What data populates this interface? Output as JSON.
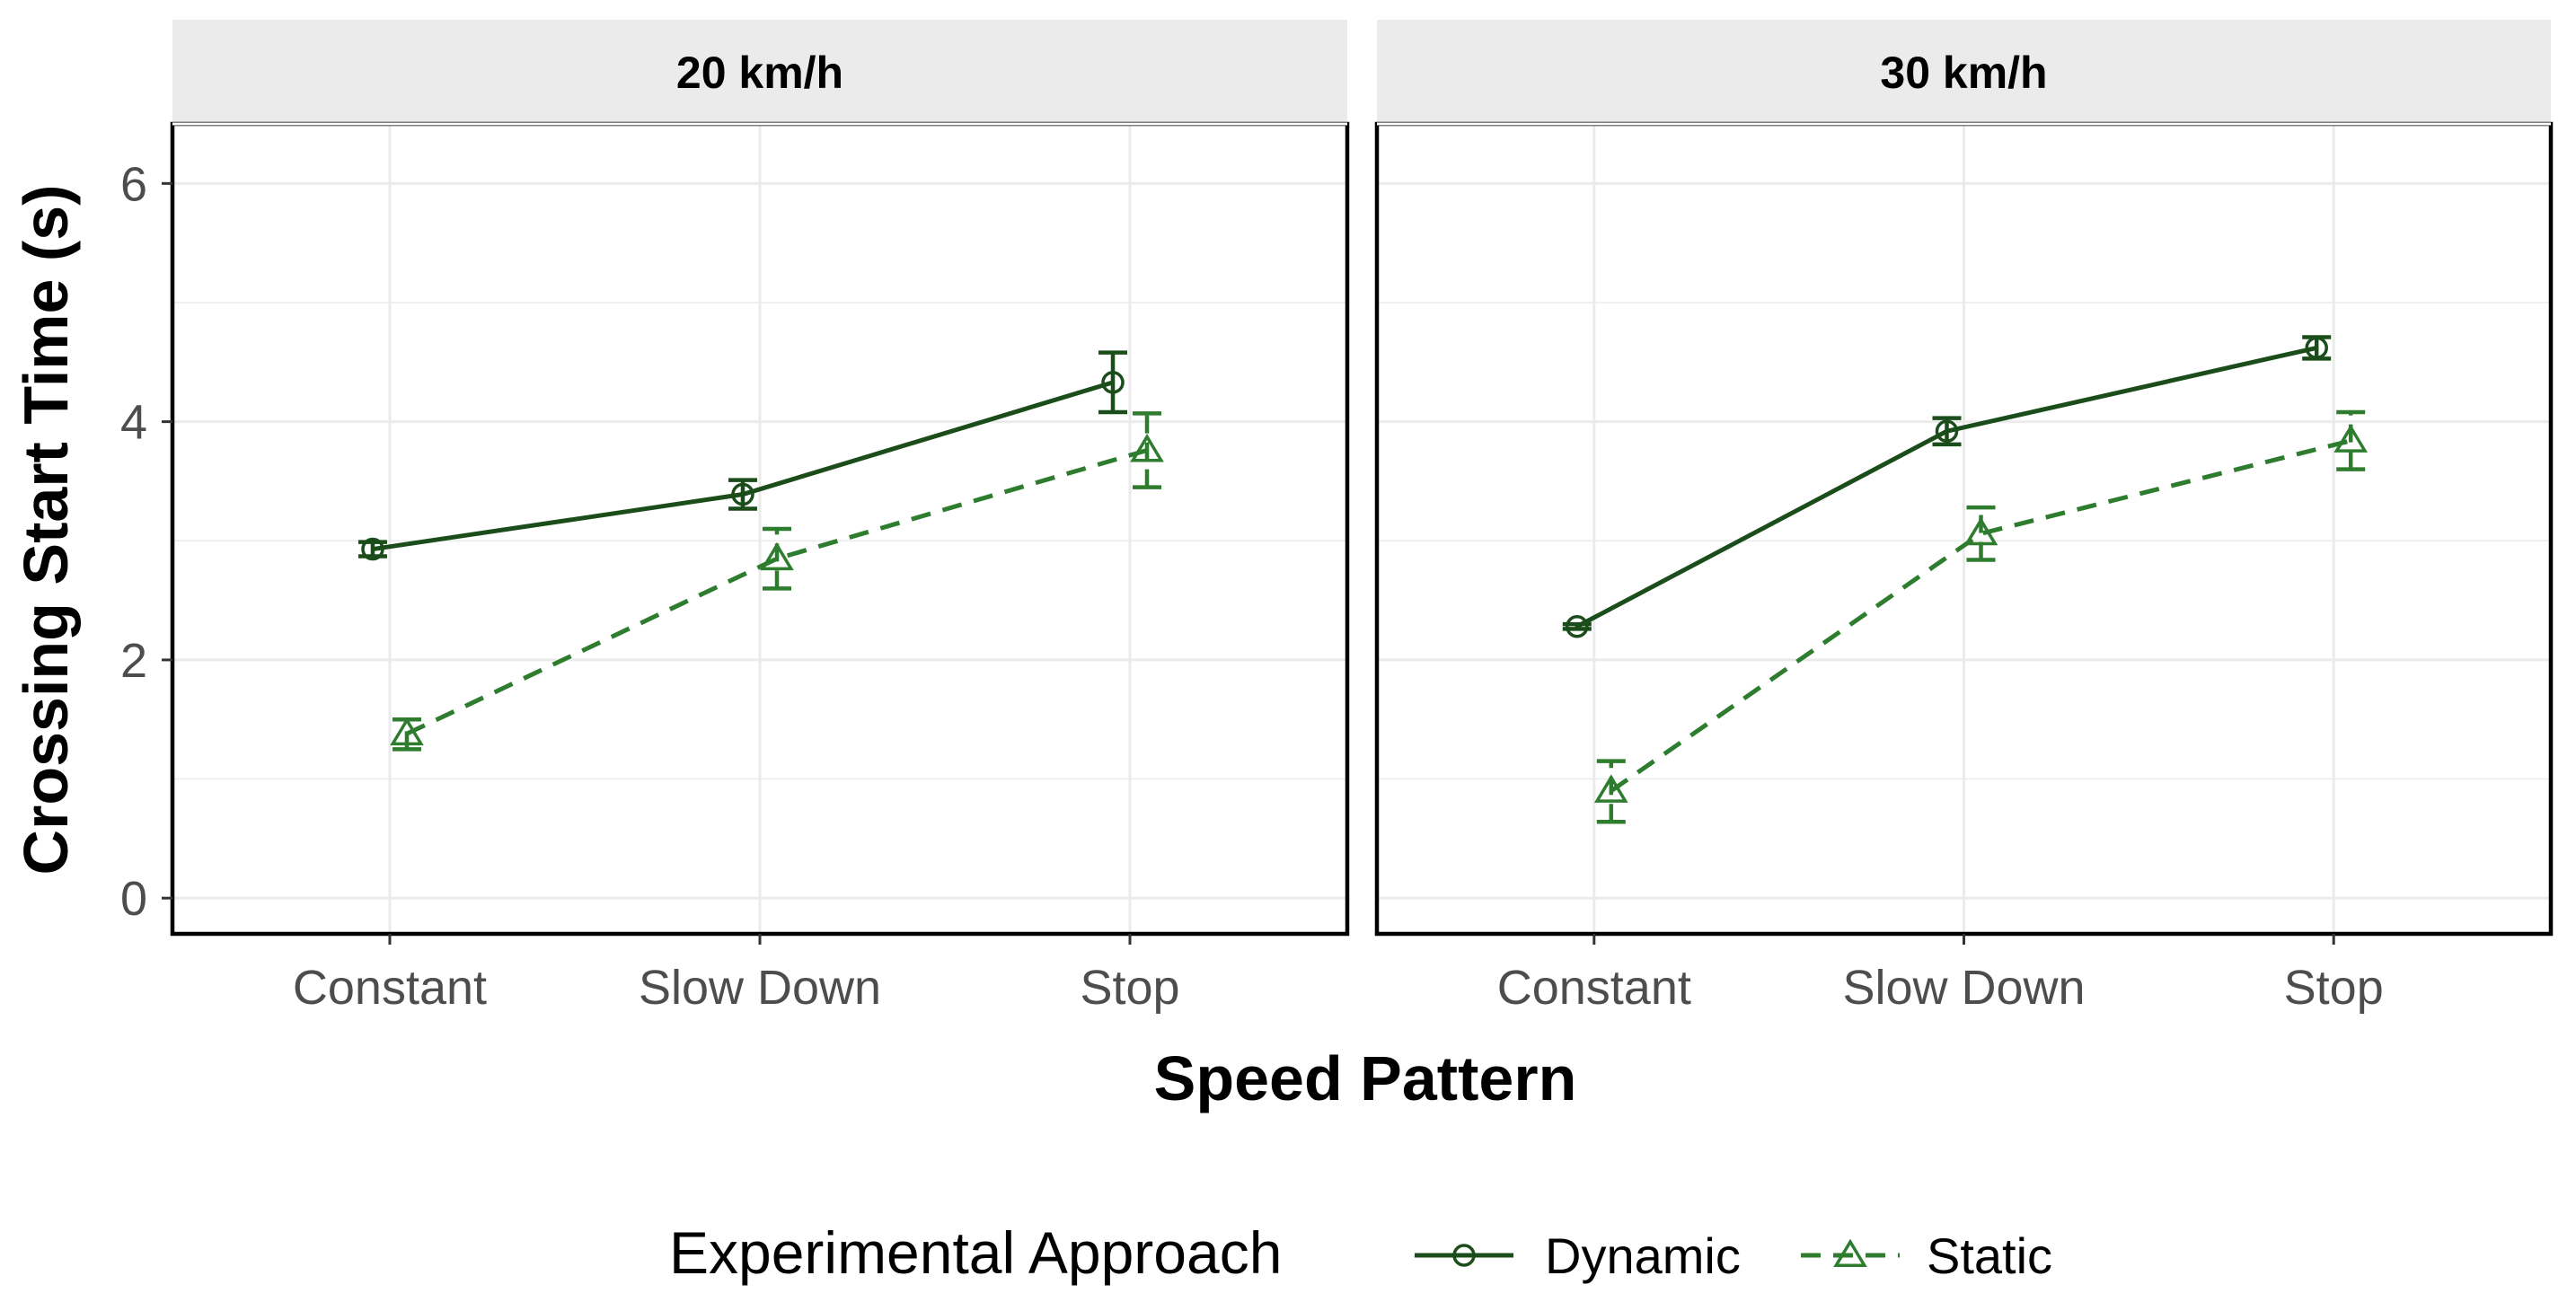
{
  "chart_data": {
    "type": "line",
    "title": "",
    "xlabel": "Speed Pattern",
    "ylabel": "Crossing Start Time (s)",
    "ylim": [
      -0.3,
      6.5
    ],
    "yticks": [
      0,
      2,
      4,
      6
    ],
    "grid": true,
    "categories": [
      "Constant",
      "Slow Down",
      "Stop"
    ],
    "legend": {
      "title": "Experimental Approach",
      "position": "bottom"
    },
    "colors": {
      "Dynamic": "#1b4d1b",
      "Static": "#2e7d2e",
      "strip_bg": "#ebebeb",
      "grid": "#ebebeb",
      "tick_text": "#4d4d4d"
    },
    "panels": [
      {
        "label": "20 km/h",
        "series": [
          {
            "name": "Dynamic",
            "marker": "circle",
            "linestyle": "solid",
            "values": [
              2.93,
              3.39,
              4.33
            ],
            "lower": [
              2.87,
              3.27,
              4.08
            ],
            "upper": [
              2.99,
              3.51,
              4.58
            ]
          },
          {
            "name": "Static",
            "marker": "triangle",
            "linestyle": "dashed",
            "values": [
              1.38,
              2.85,
              3.76
            ],
            "lower": [
              1.25,
              2.6,
              3.45
            ],
            "upper": [
              1.5,
              3.1,
              4.07
            ]
          }
        ]
      },
      {
        "label": "30 km/h",
        "series": [
          {
            "name": "Dynamic",
            "marker": "circle",
            "linestyle": "solid",
            "values": [
              2.28,
              3.92,
              4.62
            ],
            "lower": [
              2.26,
              3.81,
              4.53
            ],
            "upper": [
              2.3,
              4.03,
              4.71
            ]
          },
          {
            "name": "Static",
            "marker": "triangle",
            "linestyle": "dashed",
            "values": [
              0.9,
              3.06,
              3.84
            ],
            "lower": [
              0.64,
              2.84,
              3.6
            ],
            "upper": [
              1.15,
              3.28,
              4.08
            ]
          }
        ]
      }
    ]
  }
}
